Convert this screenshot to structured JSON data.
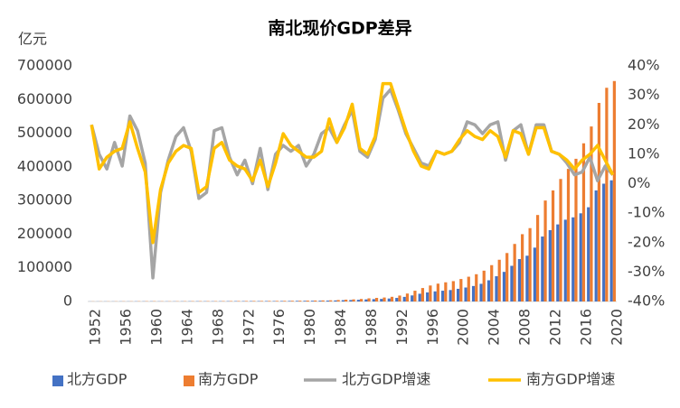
{
  "chart_data": {
    "type": "bar",
    "title": "南北现价GDP差异",
    "y_label": "亿元",
    "categories": [
      "1952",
      null,
      null,
      null,
      "1956",
      null,
      null,
      null,
      "1960",
      null,
      null,
      null,
      "1964",
      null,
      null,
      null,
      "1968",
      null,
      null,
      null,
      "1972",
      null,
      null,
      null,
      "1976",
      null,
      null,
      null,
      "1980",
      null,
      null,
      null,
      "1984",
      null,
      null,
      null,
      "1988",
      null,
      null,
      null,
      "1992",
      null,
      null,
      null,
      "1996",
      null,
      null,
      null,
      "2000",
      null,
      null,
      null,
      "2004",
      null,
      null,
      null,
      "2008",
      null,
      null,
      null,
      "2012",
      null,
      null,
      null,
      "2016",
      null,
      null,
      null,
      "2020"
    ],
    "ylim": [
      0,
      700000
    ],
    "yticks": [
      0,
      100000,
      200000,
      300000,
      400000,
      500000,
      600000,
      700000
    ],
    "y2lim": [
      -40,
      40
    ],
    "y2ticks": [
      {
        "value": -40,
        "label": "-40%"
      },
      {
        "value": -30,
        "label": "-30%"
      },
      {
        "value": -20,
        "label": "-20%"
      },
      {
        "value": -10,
        "label": "-10%"
      },
      {
        "value": 0,
        "label": "0%"
      },
      {
        "value": 10,
        "label": "10%"
      },
      {
        "value": 20,
        "label": "20%"
      },
      {
        "value": 30,
        "label": "30%"
      },
      {
        "value": 40,
        "label": "40%"
      }
    ],
    "legend": "bottom",
    "series": [
      {
        "name": "北方GDP",
        "type": "bar",
        "color": "#4472c4",
        "values": [
          300,
          360,
          380,
          400,
          460,
          470,
          590,
          660,
          690,
          560,
          520,
          550,
          650,
          780,
          870,
          790,
          760,
          870,
          1050,
          1140,
          1180,
          1280,
          1290,
          1410,
          1370,
          1500,
          1690,
          1860,
          2070,
          2170,
          2370,
          2630,
          3150,
          3880,
          4380,
          5040,
          6200,
          7000,
          7700,
          8800,
          10600,
          13700,
          18000,
          23000,
          27000,
          30000,
          32000,
          34000,
          37700,
          41500,
          46000,
          52500,
          63000,
          75000,
          88000,
          106000,
          126000,
          136000,
          160000,
          193000,
          212000,
          229000,
          243000,
          250000,
          262000,
          280000,
          330000,
          350000,
          360000
        ]
      },
      {
        "name": "南方GDP",
        "type": "bar",
        "color": "#ed7d31",
        "values": [
          380,
          460,
          480,
          510,
          580,
          610,
          740,
          810,
          820,
          700,
          670,
          720,
          840,
          980,
          1060,
          1030,
          1000,
          1110,
          1290,
          1380,
          1440,
          1550,
          1610,
          1720,
          1700,
          1850,
          2090,
          2340,
          2630,
          2880,
          3150,
          3500,
          4290,
          5400,
          6200,
          7450,
          9400,
          10700,
          11800,
          13900,
          17600,
          23600,
          32000,
          40000,
          47500,
          53000,
          57000,
          60500,
          66800,
          73600,
          81000,
          91600,
          108000,
          124000,
          144000,
          171000,
          200000,
          218000,
          257000,
          300000,
          330000,
          364000,
          394000,
          424000,
          470000,
          520000,
          590000,
          635000,
          655000
        ]
      },
      {
        "name": "北方GDP增速",
        "type": "line",
        "axis": "y2",
        "color": "#a5a5a5",
        "values": [
          20,
          10,
          5,
          14,
          6,
          23,
          18,
          7,
          -32,
          -3,
          8,
          16,
          19,
          11,
          -5,
          -3,
          18,
          19,
          9,
          3,
          8,
          0,
          12,
          -2,
          10,
          13,
          11,
          13,
          6,
          10,
          17,
          19,
          14,
          20,
          25,
          11,
          9,
          15,
          29,
          32,
          25,
          17,
          12,
          7,
          6,
          11,
          10,
          11,
          14,
          21,
          20,
          17,
          20,
          21,
          8,
          18,
          20,
          10,
          20,
          20,
          11,
          10,
          7,
          3,
          4,
          9,
          1,
          6,
          3
        ]
      },
      {
        "name": "南方GDP增速",
        "type": "line",
        "axis": "y2",
        "color": "#ffc000",
        "values": [
          20,
          5,
          9,
          11,
          12,
          21,
          12,
          4,
          -20,
          -2,
          7,
          11,
          13,
          12,
          -3,
          -1,
          12,
          14,
          8,
          6,
          5,
          1,
          8,
          -1,
          7,
          17,
          13,
          11,
          9,
          9,
          11,
          22,
          14,
          19,
          27,
          12,
          10,
          16,
          34,
          34,
          26,
          18,
          11,
          6,
          5,
          11,
          10,
          11,
          15,
          18,
          16,
          15,
          18,
          16,
          9,
          18,
          17,
          10,
          19,
          19,
          11,
          10,
          8,
          5,
          8,
          10,
          13,
          8,
          3
        ]
      }
    ]
  }
}
